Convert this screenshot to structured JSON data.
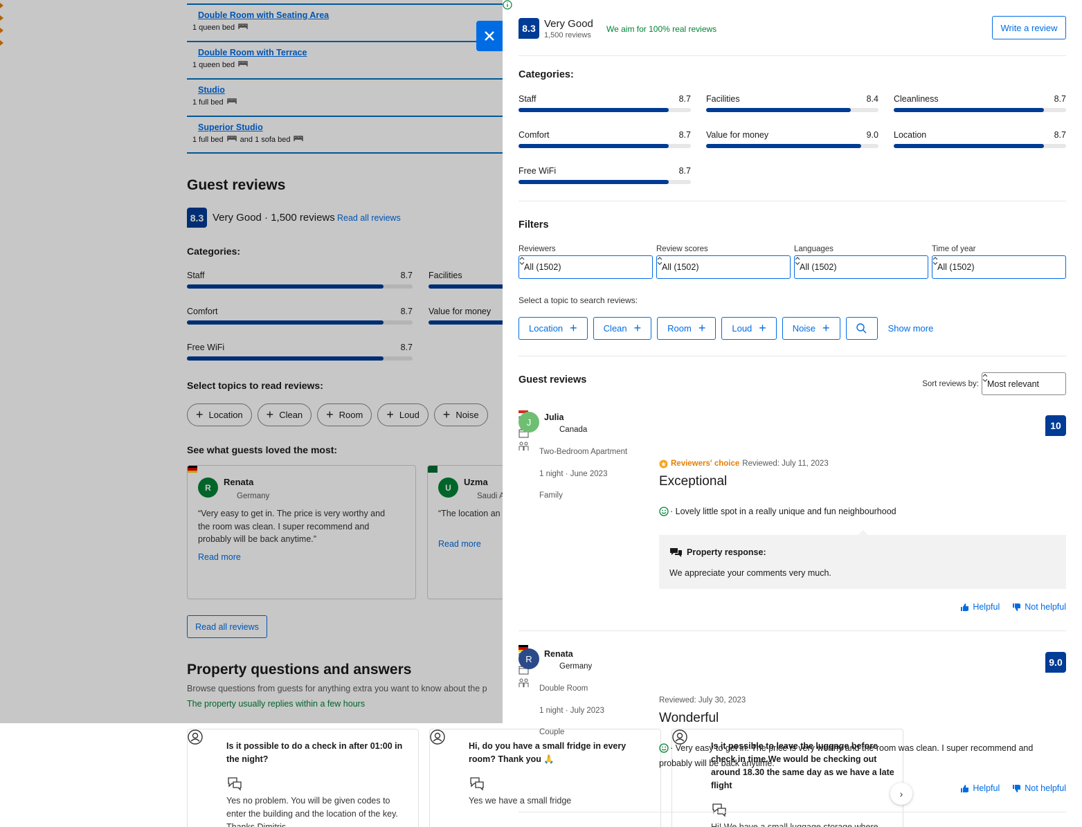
{
  "background": {
    "rooms": [
      {
        "name": "Double Room with Seating Area",
        "beds": [
          "1 queen bed"
        ]
      },
      {
        "name": "Double Room with Terrace",
        "beds": [
          "1 queen bed"
        ]
      },
      {
        "name": "Studio",
        "beds": [
          "1 full bed"
        ]
      },
      {
        "name": "Superior Studio",
        "beds": [
          "1 full bed",
          "and 1 sofa bed"
        ]
      }
    ],
    "guest_reviews": {
      "title": "Guest reviews",
      "score": "8.3",
      "rating": "Very Good · 1,500 reviews",
      "read_all_link": "Read all reviews",
      "categories_title": "Categories:",
      "categories": [
        {
          "name": "Staff",
          "score": "8.7"
        },
        {
          "name": "Facilities"
        },
        {
          "name": "Comfort",
          "score": "8.7"
        },
        {
          "name": "Value for money"
        },
        {
          "name": "Free WiFi",
          "score": "8.7"
        }
      ],
      "topics_title": "Select topics to read reviews:",
      "topics": [
        "Location",
        "Clean",
        "Room",
        "Loud",
        "Noise"
      ],
      "loved_title": "See what guests loved the most:",
      "loved": [
        {
          "initial": "R",
          "name": "Renata",
          "country": "Germany",
          "quote": "“Very easy to get in. The price is very worthy and the room was clean. I super recommend and probably will be back anytime.”",
          "read_more": "Read more"
        },
        {
          "initial": "U",
          "name": "Uzma",
          "country": "Saudi A",
          "quote": "“The location an easy to self chec",
          "read_more": "Read more"
        }
      ],
      "read_all_button": "Read all reviews"
    },
    "qa": {
      "title": "Property questions and answers",
      "subtitle": "Browse questions from guests for anything extra you want to know about the p",
      "reply_time": "The property usually replies within a few hours",
      "items": [
        {
          "question": "Is it possible to do a check in after 01:00 in the night?",
          "answer": "Yes no problem. You will be given codes to enter the building and the location of the key. Thanks Dimitris"
        },
        {
          "question": "Hi, do you have a small fridge in every room? Thank you 🙏",
          "answer": "Yes we have a small fridge"
        },
        {
          "question": "Is it possible to leave the luggage before check in time.We would be checking out around 18.30 the same day as we have a late flight",
          "answer": "Hi! We have a small luggage storage where you can leave your suitcases before check in."
        }
      ]
    }
  },
  "panel": {
    "score": "8.3",
    "rating": "Very Good",
    "review_count": "1,500 reviews",
    "real_reviews": "We aim for 100% real reviews",
    "write_review": "Write a review",
    "categories_title": "Categories:",
    "categories": [
      {
        "name": "Staff",
        "score": "8.7"
      },
      {
        "name": "Facilities",
        "score": "8.4"
      },
      {
        "name": "Cleanliness",
        "score": "8.7"
      },
      {
        "name": "Comfort",
        "score": "8.7"
      },
      {
        "name": "Value for money",
        "score": "9.0"
      },
      {
        "name": "Location",
        "score": "8.7"
      },
      {
        "name": "Free WiFi",
        "score": "8.7"
      }
    ],
    "filters_title": "Filters",
    "filters": [
      {
        "label": "Reviewers",
        "value": "All (1502)"
      },
      {
        "label": "Review scores",
        "value": "All (1502)"
      },
      {
        "label": "Languages",
        "value": "All (1502)"
      },
      {
        "label": "Time of year",
        "value": "All (1502)"
      }
    ],
    "topic_prompt": "Select a topic to search reviews:",
    "topics": [
      "Location",
      "Clean",
      "Room",
      "Loud",
      "Noise"
    ],
    "show_more": "Show more",
    "reviews_title": "Guest reviews",
    "sort_label": "Sort reviews by:",
    "sort_value": "Most relevant",
    "reviews": [
      {
        "initial": "J",
        "name": "Julia",
        "country": "Canada",
        "room": "Two-Bedroom Apartment",
        "stay": "1 night · June 2023",
        "traveler": "Family",
        "badge": "Reviewers' choice",
        "date": "Reviewed: July 11, 2023",
        "title": "Exceptional",
        "score": "10",
        "text": "· Lovely little spot in a really unique and fun neighbourhood",
        "response_title": "Property response:",
        "response": "We appreciate your comments very much.",
        "helpful": "Helpful",
        "not_helpful": "Not helpful"
      },
      {
        "initial": "R",
        "name": "Renata",
        "country": "Germany",
        "room": "Double Room",
        "stay": "1 night · July 2023",
        "traveler": "Couple",
        "date": "Reviewed: July 30, 2023",
        "title": "Wonderful",
        "score": "9.0",
        "text": "· Very easy to get in. The price is very worthy and the room was clean. I super recommend and probably will be back anytime.",
        "helpful": "Helpful",
        "not_helpful": "Not helpful"
      }
    ]
  }
}
